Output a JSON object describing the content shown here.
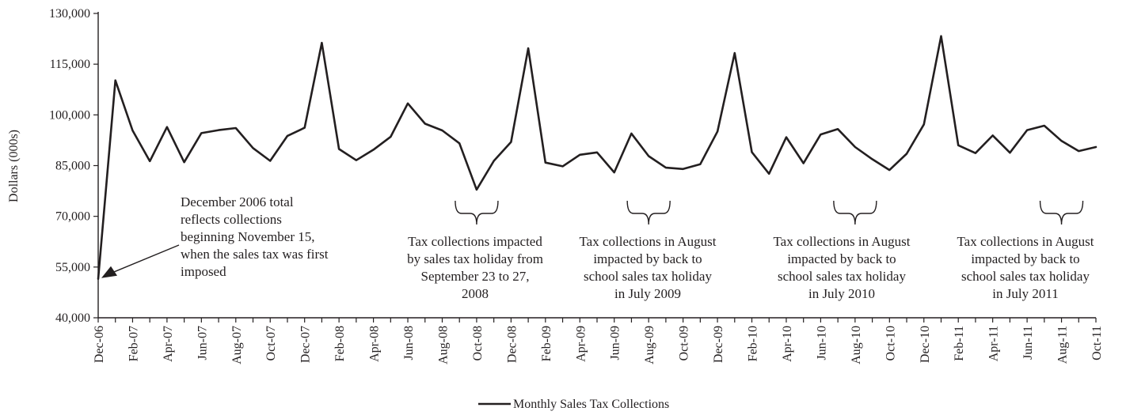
{
  "colors": {
    "series": "#231f20",
    "axis": "#231f20",
    "background": "#ffffff"
  },
  "chart_data": {
    "type": "line",
    "title": "",
    "xlabel": "",
    "ylabel": "Dollars (000s)",
    "ylim": [
      40000,
      130000
    ],
    "yticks": [
      40000,
      55000,
      70000,
      85000,
      100000,
      115000,
      130000
    ],
    "ytick_labels": [
      "40,000",
      "55,000",
      "70,000",
      "85,000",
      "100,000",
      "115,000",
      "130,000"
    ],
    "xtick_labels": [
      "Dec-06",
      "Feb-07",
      "Apr-07",
      "Jun-07",
      "Aug-07",
      "Oct-07",
      "Dec-07",
      "Feb-08",
      "Apr-08",
      "Jun-08",
      "Aug-08",
      "Oct-08",
      "Dec-08",
      "Feb-09",
      "Apr-09",
      "Jun-09",
      "Aug-09",
      "Oct-09",
      "Dec-09",
      "Feb-10",
      "Apr-10",
      "Jun-10",
      "Aug-10",
      "Oct-10",
      "Dec-10",
      "Feb-11",
      "Apr-11",
      "Jun-11",
      "Aug-11",
      "Oct-11"
    ],
    "grid": false,
    "legend_position": "bottom-center",
    "series": [
      {
        "name": "Monthly Sales Tax Collections",
        "start": "Dec-06",
        "frequency": "monthly",
        "values": [
          51500,
          110200,
          95400,
          86300,
          96400,
          86000,
          94600,
          95500,
          96100,
          90200,
          86400,
          93800,
          96200,
          121300,
          89900,
          86600,
          89700,
          93500,
          103400,
          97400,
          95400,
          91600,
          77900,
          86400,
          92000,
          119700,
          85900,
          84800,
          88200,
          88900,
          83000,
          94500,
          87800,
          84400,
          84000,
          85400,
          95100,
          118300,
          89000,
          82600,
          93400,
          85700,
          94200,
          95800,
          90500,
          86900,
          83700,
          88500,
          97200,
          123300,
          91000,
          88700,
          93900,
          88800,
          95500,
          96800,
          92300,
          89300,
          90500
        ]
      }
    ],
    "annotations": [
      {
        "id": "start",
        "lines": [
          "December 2006 total",
          "reflects collections",
          "beginning November 15,",
          "when the sales tax was first",
          "imposed"
        ],
        "points_to": "Dec-06"
      },
      {
        "id": "holiday-2008",
        "lines": [
          "Tax collections impacted",
          "by sales tax holiday from",
          "September 23 to 27,",
          "2008"
        ],
        "brace_center": "Oct-08"
      },
      {
        "id": "holiday-2009",
        "lines": [
          "Tax collections in August",
          "impacted by back to",
          "school sales tax holiday",
          "in July 2009"
        ],
        "brace_center": "Aug-09"
      },
      {
        "id": "holiday-2010",
        "lines": [
          "Tax collections in August",
          "impacted by back to",
          "school sales tax holiday",
          "in July 2010"
        ],
        "brace_center": "Aug-10"
      },
      {
        "id": "holiday-2011",
        "lines": [
          "Tax collections in August",
          "impacted by back to",
          "school sales tax holiday",
          "in July 2011"
        ],
        "brace_center": "Aug-11"
      }
    ]
  }
}
